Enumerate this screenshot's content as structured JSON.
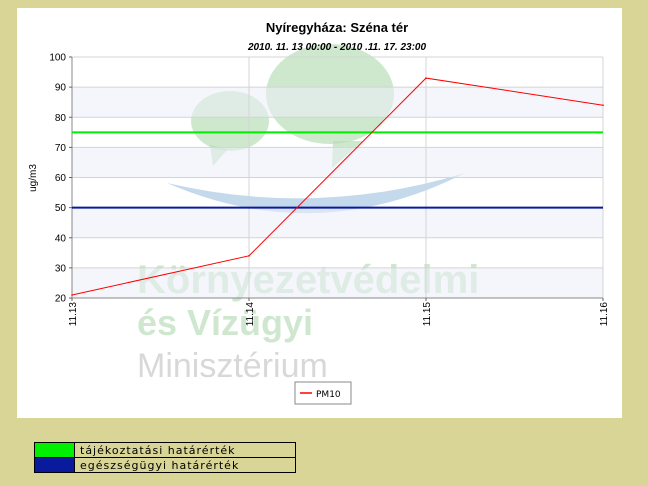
{
  "chart_data": {
    "type": "line",
    "title": "Nyíregyháza: Széna tér",
    "subtitle": "2010. 11. 13 00:00 - 2010 .11. 17. 23:00",
    "ylabel": "ug/m3",
    "xlabel": "",
    "ylim": [
      20,
      100
    ],
    "yticks": [
      20,
      30,
      40,
      50,
      60,
      70,
      80,
      90,
      100
    ],
    "xticks": [
      "11.13",
      "11.14",
      "11.15",
      "11.16"
    ],
    "grid": true,
    "legend_position": "bottom-center",
    "series": [
      {
        "name": "PM10",
        "color": "#ff0000",
        "x": [
          "11.13",
          "11.14",
          "11.15",
          "11.16"
        ],
        "values": [
          21,
          34,
          93,
          84
        ]
      }
    ],
    "thresholds": [
      {
        "name": "tájékoztatási határérték",
        "value": 75,
        "color": "#00ee00"
      },
      {
        "name": "egészségügyi határérték",
        "value": 50,
        "color": "#0a1a9c"
      }
    ]
  },
  "watermark": {
    "line1": "Környezetvédelmi",
    "line2": "és Vízügyi",
    "line3": "Minisztérium"
  }
}
